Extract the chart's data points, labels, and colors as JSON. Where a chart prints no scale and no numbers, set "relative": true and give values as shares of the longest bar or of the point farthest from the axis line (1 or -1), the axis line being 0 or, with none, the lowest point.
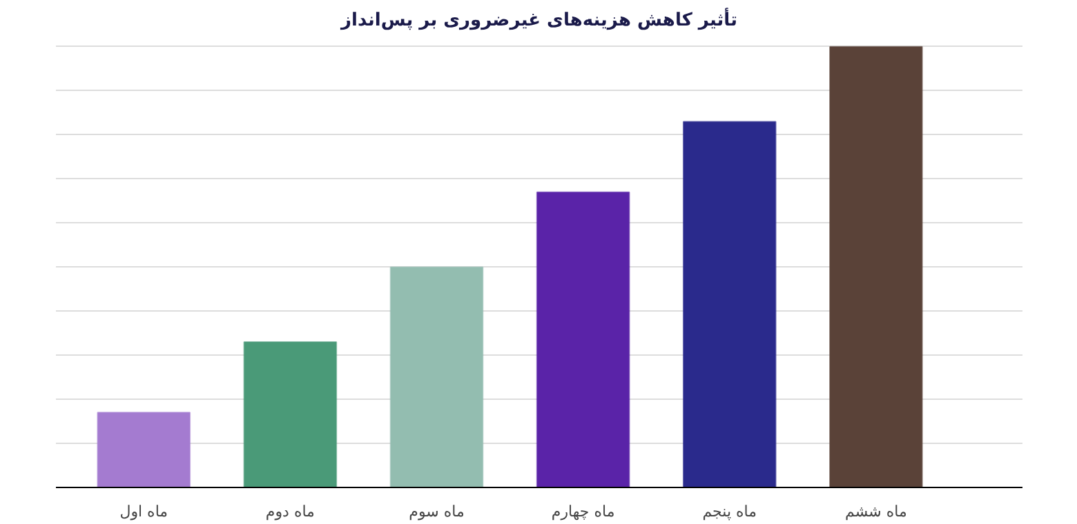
{
  "chart_data": {
    "type": "bar",
    "title": "تأثیر کاهش هزینه‌های غیرضروری بر پس‌انداز",
    "categories": [
      "ماه اول",
      "ماه دوم",
      "ماه سوم",
      "ماه چهارم",
      "ماه پنجم",
      "ماه ششم"
    ],
    "values": [
      0.17,
      0.33,
      0.5,
      0.67,
      0.83,
      1
    ],
    "colors": [
      "#a47bd0",
      "#4a9a78",
      "#93bdb0",
      "#5a23a8",
      "#2a2a8c",
      "#5a4238"
    ],
    "relative": true,
    "grid": "y"
  }
}
